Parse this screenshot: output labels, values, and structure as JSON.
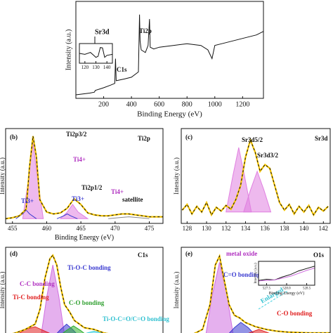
{
  "chart_data": [
    {
      "type": "line",
      "xlabel": "Binding Energy (eV)",
      "ylabel": "Intensity (a.u.)",
      "xlim": [
        0,
        1350
      ],
      "ylim": [
        0,
        110
      ],
      "xticks": [
        200,
        400,
        600,
        800,
        1000,
        1200
      ],
      "annotations": [
        "C1s",
        "Ti2p"
      ],
      "series": [
        {
          "color": "#111111",
          "x": [
            0,
            50,
            100,
            133,
            140,
            200,
            250,
            280,
            285,
            290,
            350,
            400,
            450,
            455,
            458,
            462,
            470,
            500,
            520,
            530,
            535,
            560,
            600,
            700,
            800,
            900,
            950,
            980,
            1000,
            1050,
            1100,
            1200,
            1300,
            1350
          ],
          "values": [
            4,
            5,
            6,
            7,
            9,
            12,
            15,
            17,
            45,
            20,
            22,
            24,
            30,
            70,
            95,
            65,
            55,
            52,
            60,
            90,
            58,
            56,
            58,
            60,
            62,
            60,
            55,
            45,
            60,
            62,
            64,
            68,
            72,
            76
          ]
        }
      ]
    },
    {
      "type": "line",
      "xlim": [
        115,
        145
      ],
      "ylim": [
        0,
        100
      ],
      "xticks": [
        120,
        130,
        140
      ],
      "annotations": [
        "Sr3d"
      ],
      "series": [
        {
          "color": "#111111",
          "x": [
            115,
            120,
            125,
            128,
            130,
            132,
            134,
            136,
            138,
            140,
            145
          ],
          "values": [
            50,
            45,
            55,
            40,
            30,
            35,
            80,
            78,
            30,
            40,
            45
          ]
        }
      ]
    },
    {
      "type": "line",
      "xlabel": "Binding Energy (eV)",
      "ylabel": "Intensity (a.u.)",
      "xlim": [
        454,
        477
      ],
      "ylim": [
        0,
        100
      ],
      "xticks": [
        455,
        460,
        465,
        470,
        475
      ],
      "annotations": [
        "(b)",
        "Ti2p",
        "Ti2p3/2",
        "Ti4+",
        "Ti3+",
        "Ti2p1/2",
        "Ti3+",
        "Ti4+",
        "satellite"
      ],
      "series": [
        {
          "color": "#e080e0",
          "fill": true,
          "x": [
            456.5,
            457.2,
            458,
            458.8,
            459.5
          ],
          "values": [
            5,
            40,
            85,
            40,
            5
          ]
        },
        {
          "color": "#3a3ad0",
          "x": [
            455.5,
            456.5,
            457,
            457.5,
            458.5
          ],
          "values": [
            5,
            10,
            14,
            10,
            5
          ]
        },
        {
          "color": "#e080e0",
          "fill": true,
          "x": [
            462,
            463,
            463.8,
            464.6,
            466
          ],
          "values": [
            5,
            12,
            20,
            12,
            5
          ]
        },
        {
          "color": "#3a3ad0",
          "x": [
            461.5,
            462.5,
            463,
            463.5,
            464.5
          ],
          "values": [
            5,
            8,
            10,
            8,
            5
          ]
        },
        {
          "color": "#888888",
          "x": [
            469,
            470.5,
            472,
            473.5,
            475
          ],
          "values": [
            5,
            6,
            7,
            6,
            5
          ]
        },
        {
          "color": "#f5c400",
          "dash": true,
          "x": [
            454,
            455,
            456,
            457,
            457.5,
            458,
            458.5,
            459,
            460,
            461,
            462,
            463,
            464,
            465,
            466,
            467,
            468,
            469,
            470,
            471,
            472,
            473,
            474,
            475,
            476,
            477
          ],
          "values": [
            5,
            6,
            8,
            15,
            60,
            92,
            70,
            25,
            12,
            10,
            11,
            16,
            26,
            20,
            11,
            9,
            8,
            8,
            9,
            10,
            10,
            9,
            8,
            7,
            7,
            7
          ]
        }
      ]
    },
    {
      "type": "line",
      "ylabel": "Intensity (a.u.)",
      "xlim": [
        127.4,
        142.7
      ],
      "ylim": [
        0,
        100
      ],
      "xticks": [
        128,
        130,
        132,
        134,
        136,
        138,
        140,
        142
      ],
      "annotations": [
        "(c)",
        "Sr3d",
        "Sr3d5/2",
        "Sr3d3/2"
      ],
      "series": [
        {
          "color": "#e080e0",
          "fill": true,
          "x": [
            132,
            132.7,
            133.3,
            133.9,
            134.6
          ],
          "values": [
            12,
            50,
            80,
            50,
            12
          ]
        },
        {
          "color": "#e080e0",
          "fill": true,
          "x": [
            133.8,
            134.5,
            135.2,
            135.9,
            136.6
          ],
          "values": [
            12,
            35,
            55,
            35,
            12
          ]
        },
        {
          "color": "#f5c400",
          "dash": true,
          "x": [
            127.5,
            128,
            128.5,
            129,
            129.5,
            130,
            130.5,
            131,
            131.5,
            132,
            132.5,
            133,
            133.5,
            134,
            134.5,
            135,
            135.5,
            136,
            136.5,
            137,
            137.5,
            138,
            138.5,
            139,
            139.5,
            140,
            140.5,
            141,
            141.5,
            142,
            142.5
          ],
          "values": [
            14,
            20,
            10,
            18,
            12,
            22,
            9,
            17,
            13,
            19,
            15,
            25,
            40,
            70,
            88,
            75,
            55,
            62,
            58,
            40,
            22,
            14,
            20,
            10,
            18,
            12,
            19,
            9,
            17,
            13,
            18
          ]
        }
      ]
    },
    {
      "type": "line",
      "ylabel": "Intensity (a.u.)",
      "xlim": [
        280,
        296
      ],
      "ylim": [
        0,
        105
      ],
      "annotations": [
        "(d)",
        "C1s",
        "C-C bonding",
        "Ti-O-C bonding",
        "Ti-C bonding",
        "C-O bonding",
        "Ti-O-C=O/C=O bonding"
      ],
      "series": [
        {
          "color": "#d070e0",
          "fill": true,
          "x": [
            283.6,
            284.2,
            284.8,
            285.4,
            286
          ],
          "values": [
            5,
            50,
            85,
            50,
            5
          ]
        },
        {
          "color": "#e02020",
          "fill": true,
          "x": [
            281,
            282,
            283,
            284,
            285
          ],
          "values": [
            5,
            12,
            15,
            10,
            5
          ]
        },
        {
          "color": "#3a3ad0",
          "fill": true,
          "x": [
            285,
            285.6,
            286.2,
            286.8,
            287.4
          ],
          "values": [
            5,
            12,
            18,
            12,
            5
          ]
        },
        {
          "color": "#30b030",
          "fill": true,
          "x": [
            285.5,
            286.2,
            286.9,
            287.6,
            288.3
          ],
          "values": [
            5,
            11,
            16,
            11,
            5
          ]
        },
        {
          "color": "#40d0e0",
          "fill": true,
          "x": [
            287.5,
            288.3,
            289,
            289.7,
            290.5
          ],
          "values": [
            5,
            8,
            10,
            8,
            5
          ]
        },
        {
          "color": "#f5c400",
          "dash": true,
          "x": [
            280,
            281,
            282,
            283,
            283.5,
            284,
            284.5,
            284.8,
            285.2,
            285.6,
            286,
            286.5,
            287,
            288,
            289,
            290,
            291,
            292,
            294,
            296
          ],
          "values": [
            5,
            8,
            12,
            18,
            35,
            70,
            92,
            96,
            85,
            60,
            40,
            32,
            22,
            14,
            12,
            8,
            6,
            5,
            4,
            4
          ]
        }
      ]
    },
    {
      "type": "line",
      "ylabel": "Intensity (a.u.)",
      "xlim": [
        526,
        540
      ],
      "ylim": [
        0,
        105
      ],
      "annotations": [
        "(e)",
        "O1s",
        "metal oxide",
        "C=O bonding",
        "Enlarged",
        "C-O bonding"
      ],
      "series": [
        {
          "color": "#d070e0",
          "fill": true,
          "x": [
            528.3,
            528.9,
            529.6,
            530.3,
            530.9
          ],
          "values": [
            5,
            50,
            88,
            50,
            5
          ]
        },
        {
          "color": "#3a3ad0",
          "fill": true,
          "x": [
            530.3,
            531,
            531.6,
            532.3,
            533
          ],
          "values": [
            5,
            14,
            20,
            14,
            5
          ]
        },
        {
          "color": "#e02020",
          "fill": true,
          "x": [
            531.8,
            532.6,
            533.3,
            534,
            534.8
          ],
          "values": [
            5,
            9,
            12,
            9,
            5
          ]
        },
        {
          "color": "#f5c400",
          "dash": true,
          "x": [
            526,
            527,
            528,
            528.7,
            529.2,
            529.6,
            530,
            530.5,
            531,
            531.5,
            532,
            533,
            534,
            535,
            536,
            538,
            540
          ],
          "values": [
            4,
            6,
            12,
            40,
            85,
            95,
            70,
            40,
            28,
            25,
            20,
            15,
            12,
            10,
            9,
            8,
            8
          ]
        }
      ]
    },
    {
      "type": "line",
      "xlabel": "Binding Energy (eV)",
      "ylabel": "Intensity (a.u.)",
      "xlim": [
        527.3,
        528.7
      ],
      "ylim": [
        0,
        100
      ],
      "xticks": [
        527.5,
        {
          "value": 528,
          "label": "528.0"
        },
        528.5
      ],
      "series": [
        {
          "color": "#111111",
          "x": [
            527.3,
            527.5,
            527.7,
            527.9,
            528.1,
            528.3,
            528.5,
            528.7
          ],
          "values": [
            20,
            25,
            22,
            35,
            45,
            60,
            70,
            80
          ]
        },
        {
          "color": "#d070e0",
          "x": [
            527.3,
            527.7,
            528.1,
            528.5,
            528.7
          ],
          "values": [
            18,
            22,
            38,
            62,
            72
          ]
        }
      ]
    }
  ]
}
